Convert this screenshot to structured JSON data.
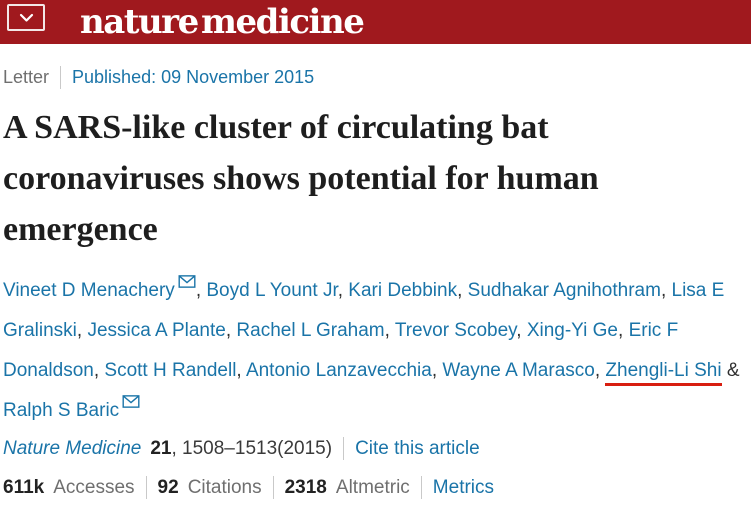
{
  "header": {
    "journal_logo": "nature medicine"
  },
  "eyebrow": {
    "article_type": "Letter",
    "published": "Published: 09 November 2015"
  },
  "title": "A SARS-like cluster of circulating bat coronaviruses shows potential for human emergence",
  "authors": {
    "list": [
      {
        "name": "Vineet D Menachery",
        "email_icon": true
      },
      {
        "name": "Boyd L Yount Jr"
      },
      {
        "name": "Kari Debbink"
      },
      {
        "name": "Sudhakar Agnihothram"
      },
      {
        "name": "Lisa E Gralinski"
      },
      {
        "name": "Jessica A Plante"
      },
      {
        "name": "Rachel L Graham"
      },
      {
        "name": "Trevor Scobey"
      },
      {
        "name": "Xing-Yi Ge"
      },
      {
        "name": "Eric F Donaldson"
      },
      {
        "name": "Scott H Randell"
      },
      {
        "name": "Antonio Lanzavecchia"
      },
      {
        "name": "Wayne A Marasco"
      },
      {
        "name": "Zhengli-Li Shi",
        "red_underline": true
      },
      {
        "name": "Ralph S Baric",
        "email_icon": true
      }
    ],
    "separator": ", ",
    "last_separator": " & "
  },
  "citation": {
    "journal": "Nature Medicine",
    "volume": "21",
    "pages_year": ", 1508–1513(2015)",
    "cite_link": "Cite this article"
  },
  "metrics": {
    "stats": [
      {
        "value": "611k",
        "label": "Accesses"
      },
      {
        "value": "92",
        "label": "Citations"
      },
      {
        "value": "2318",
        "label": "Altmetric"
      }
    ],
    "link": "Metrics"
  },
  "colors": {
    "brand_red": "#a0191e",
    "link_blue": "#1a74a8",
    "annotation_red": "#d81e10",
    "text_dark": "#222222",
    "text_gray": "#6f6f6f"
  }
}
